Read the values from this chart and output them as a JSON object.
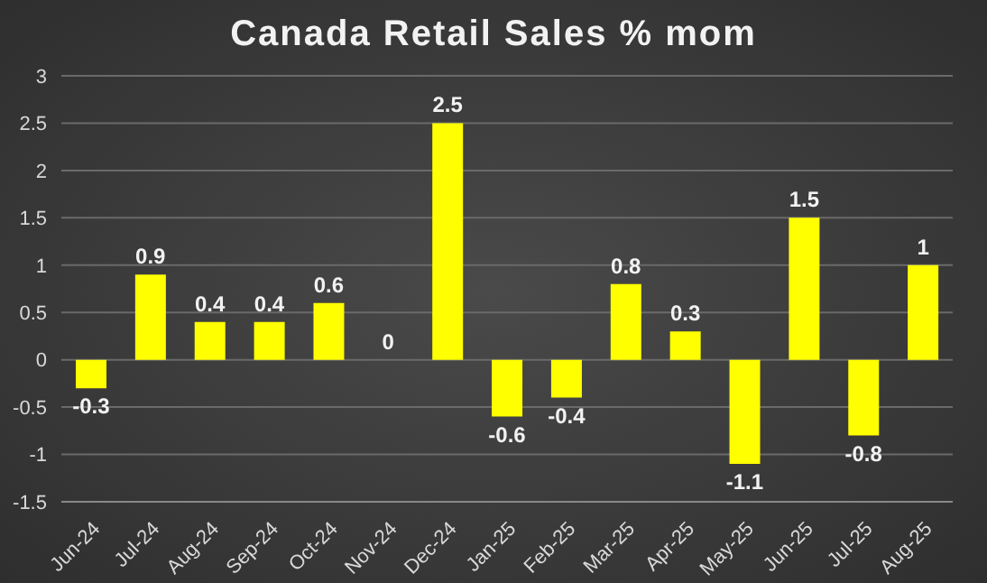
{
  "chart_data": {
    "type": "bar",
    "title": "Canada Retail Sales % mom",
    "categories": [
      "Jun-24",
      "Jul-24",
      "Aug-24",
      "Sep-24",
      "Oct-24",
      "Nov-24",
      "Dec-24",
      "Jan-25",
      "Feb-25",
      "Mar-25",
      "Apr-25",
      "May-25",
      "Jun-25",
      "Jul-25",
      "Aug-25"
    ],
    "values": [
      -0.3,
      0.9,
      0.4,
      0.4,
      0.6,
      0,
      2.5,
      -0.6,
      -0.4,
      0.8,
      0.3,
      -1.1,
      1.5,
      -0.8,
      1
    ],
    "color": "#ffff00",
    "ylim": [
      -1.5,
      3
    ],
    "yticks": [
      -1.5,
      -1,
      -0.5,
      0,
      0.5,
      1,
      1.5,
      2,
      2.5,
      3
    ],
    "grid": "y",
    "data_labels": true
  }
}
